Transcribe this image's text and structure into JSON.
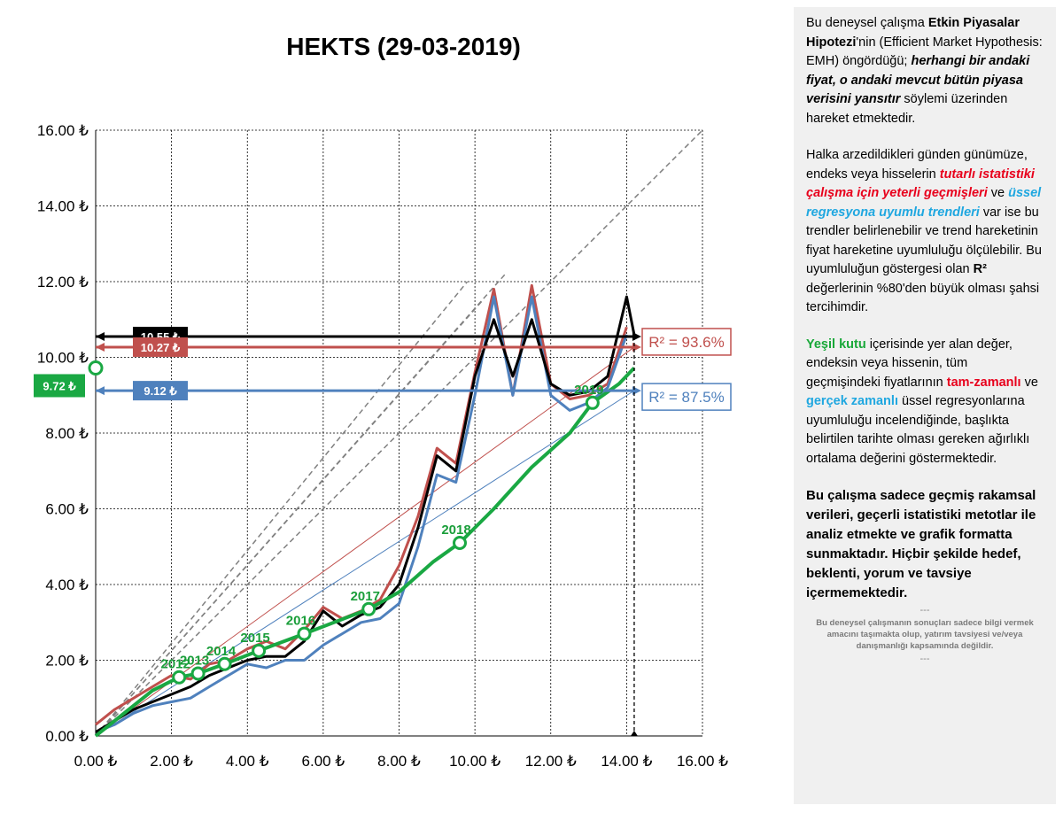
{
  "chart_data": {
    "type": "line",
    "title": "HEKTS (29-03-2019)",
    "xlim": [
      0,
      16
    ],
    "ylim": [
      0,
      16
    ],
    "x_ticks": [
      "0.00 ₺",
      "2.00 ₺",
      "4.00 ₺",
      "6.00 ₺",
      "8.00 ₺",
      "10.00 ₺",
      "12.00 ₺",
      "14.00 ₺",
      "16.00 ₺"
    ],
    "y_ticks": [
      "0.00 ₺",
      "2.00 ₺",
      "4.00 ₺",
      "6.00 ₺",
      "8.00 ₺",
      "10.00 ₺",
      "12.00 ₺",
      "14.00 ₺",
      "16.00 ₺"
    ],
    "grid": true,
    "series": [
      {
        "color": "#c0504d",
        "values": [
          [
            0,
            0.3
          ],
          [
            0.5,
            0.7
          ],
          [
            1,
            1.0
          ],
          [
            1.5,
            1.3
          ],
          [
            2,
            1.6
          ],
          [
            2.5,
            1.5
          ],
          [
            3,
            1.9
          ],
          [
            3.5,
            2.0
          ],
          [
            4,
            2.3
          ],
          [
            4.5,
            2.5
          ],
          [
            5,
            2.3
          ],
          [
            5.5,
            2.8
          ],
          [
            6,
            3.4
          ],
          [
            6.5,
            3.1
          ],
          [
            7,
            3.3
          ],
          [
            7.5,
            3.6
          ],
          [
            8,
            4.5
          ],
          [
            8.5,
            5.8
          ],
          [
            9,
            7.6
          ],
          [
            9.5,
            7.2
          ],
          [
            10,
            9.6
          ],
          [
            10.5,
            11.8
          ],
          [
            11,
            9.0
          ],
          [
            11.5,
            11.9
          ],
          [
            12,
            9.3
          ],
          [
            12.5,
            8.9
          ],
          [
            13,
            9.0
          ],
          [
            13.5,
            9.3
          ],
          [
            14,
            10.8
          ]
        ]
      },
      {
        "color": "#4f81bd",
        "values": [
          [
            0,
            0.1
          ],
          [
            0.5,
            0.3
          ],
          [
            1,
            0.6
          ],
          [
            1.5,
            0.8
          ],
          [
            2,
            0.9
          ],
          [
            2.5,
            1.0
          ],
          [
            3,
            1.3
          ],
          [
            3.5,
            1.6
          ],
          [
            4,
            1.9
          ],
          [
            4.5,
            1.8
          ],
          [
            5,
            2.0
          ],
          [
            5.5,
            2.0
          ],
          [
            6,
            2.4
          ],
          [
            6.5,
            2.7
          ],
          [
            7,
            3.0
          ],
          [
            7.5,
            3.1
          ],
          [
            8,
            3.5
          ],
          [
            8.5,
            5.0
          ],
          [
            9,
            6.9
          ],
          [
            9.5,
            6.7
          ],
          [
            10,
            9.0
          ],
          [
            10.5,
            11.6
          ],
          [
            11,
            9.0
          ],
          [
            11.5,
            11.6
          ],
          [
            12,
            9.0
          ],
          [
            12.5,
            8.6
          ],
          [
            13,
            8.8
          ],
          [
            13.5,
            9.2
          ],
          [
            14,
            10.6
          ]
        ]
      },
      {
        "color": "#000000",
        "values": [
          [
            0,
            0.1
          ],
          [
            0.5,
            0.4
          ],
          [
            1,
            0.7
          ],
          [
            1.5,
            0.9
          ],
          [
            2,
            1.1
          ],
          [
            2.5,
            1.3
          ],
          [
            3,
            1.6
          ],
          [
            3.5,
            1.8
          ],
          [
            4,
            2.0
          ],
          [
            4.5,
            2.1
          ],
          [
            5,
            2.1
          ],
          [
            5.5,
            2.5
          ],
          [
            6,
            3.3
          ],
          [
            6.5,
            2.9
          ],
          [
            7,
            3.2
          ],
          [
            7.5,
            3.4
          ],
          [
            8,
            4.0
          ],
          [
            8.5,
            5.5
          ],
          [
            9,
            7.4
          ],
          [
            9.5,
            7.0
          ],
          [
            10,
            9.5
          ],
          [
            10.5,
            11.0
          ],
          [
            11,
            9.5
          ],
          [
            11.5,
            11.0
          ],
          [
            12,
            9.3
          ],
          [
            12.5,
            9.0
          ],
          [
            13,
            9.1
          ],
          [
            13.5,
            9.5
          ],
          [
            14,
            11.6
          ],
          [
            14.2,
            10.6
          ]
        ]
      },
      {
        "color": "#1aa843",
        "values": [
          [
            0,
            0
          ],
          [
            1.5,
            1.2
          ],
          [
            2.2,
            1.55
          ],
          [
            2.7,
            1.65
          ],
          [
            3.4,
            1.9
          ],
          [
            4.3,
            2.25
          ],
          [
            5.5,
            2.7
          ],
          [
            7.2,
            3.35
          ],
          [
            8,
            3.8
          ],
          [
            8.9,
            4.6
          ],
          [
            9.6,
            5.1
          ],
          [
            10.5,
            6.0
          ],
          [
            11.5,
            7.1
          ],
          [
            12.5,
            8.0
          ],
          [
            13.1,
            8.8
          ],
          [
            13.8,
            9.3
          ],
          [
            14.2,
            9.72
          ]
        ]
      }
    ],
    "trend_lines": [
      {
        "name": "red_trend",
        "color": "#c0504d",
        "from": [
          0,
          0
        ],
        "to": [
          14.2,
          10.27
        ]
      },
      {
        "name": "blue_trend",
        "color": "#4f81bd",
        "from": [
          0,
          0
        ],
        "to": [
          14.2,
          9.12
        ]
      }
    ],
    "green_markers": [
      {
        "label": "2012",
        "x": 2.2,
        "y": 1.55
      },
      {
        "label": "2013",
        "x": 2.7,
        "y": 1.65
      },
      {
        "label": "2014",
        "x": 3.4,
        "y": 1.9
      },
      {
        "label": "2015",
        "x": 4.3,
        "y": 2.25
      },
      {
        "label": "2016",
        "x": 5.5,
        "y": 2.7
      },
      {
        "label": "2017",
        "x": 7.2,
        "y": 3.35
      },
      {
        "label": "2018",
        "x": 9.6,
        "y": 5.1
      },
      {
        "label": "2019",
        "x": 13.1,
        "y": 8.8
      }
    ],
    "levels": [
      {
        "label": "10.55 ₺",
        "value": 10.55,
        "color": "#000000"
      },
      {
        "label": "10.27 ₺",
        "value": 10.27,
        "color": "#c0504d"
      },
      {
        "label": "9.12 ₺",
        "value": 9.12,
        "color": "#4f81bd"
      },
      {
        "label": "9.72 ₺",
        "value": 9.72,
        "color": "#1aa843"
      }
    ],
    "r2": [
      {
        "label": "R² = 93.6%",
        "color": "#c0504d",
        "value": 93.6
      },
      {
        "label": "R² = 87.5%",
        "color": "#4f81bd",
        "value": 87.5
      }
    ]
  },
  "panel": {
    "p1_a": "Bu deneysel çalışma ",
    "p1_b": "Etkin Piyasalar Hipotezi",
    "p1_c": "'nin (Efficient Market Hypothesis: EMH) öngördüğü; ",
    "p1_d": "herhangi bir andaki fiyat, o andaki mevcut bütün piyasa verisini yansıtır",
    "p1_e": " söylemi üzerinden hareket etmektedir.",
    "p2_a": "Halka arzedildikleri günden günümüze, endeks veya hisselerin ",
    "p2_b": "tutarlı istatistiki çalışma için yeterli geçmişleri",
    "p2_c": " ve ",
    "p2_d": "üssel regresyona uyumlu trendleri",
    "p2_e": " var ise bu trendler belirlenebilir ve trend hareketinin fiyat hareketine uyumluluğu ölçülebilir. Bu uyumluluğun göstergesi olan ",
    "p2_f": "R²",
    "p2_g": " değerlerinin %80'den büyük olması şahsi tercihimdir.",
    "p3_a": "Yeşil kutu",
    "p3_b": " içerisinde yer alan değer, endeksin veya hissenin, tüm geçmişindeki fiyatlarının ",
    "p3_c": "tam-zamanlı",
    "p3_d": " ve ",
    "p3_e": "gerçek zamanlı",
    "p3_f": " üssel regresyonlarına uyumluluğu incelendiğinde, başlıkta belirtilen tarihte olması gereken ağırlıklı ortalama değerini göstermektedir.",
    "p4": "Bu çalışma sadece geçmiş rakamsal verileri, geçerli istatistiki metotlar ile  analiz etmekte ve grafik formatta sunmaktadır. Hiçbir şekilde hedef, beklenti, yorum ve tavsiye içermemektedir.",
    "dash": "---",
    "small": "Bu deneysel çalışmanın sonuçları sadece bilgi vermek amacını taşımakta olup, yatırım tavsiyesi ve/veya danışmanlığı kapsamında değildir."
  }
}
